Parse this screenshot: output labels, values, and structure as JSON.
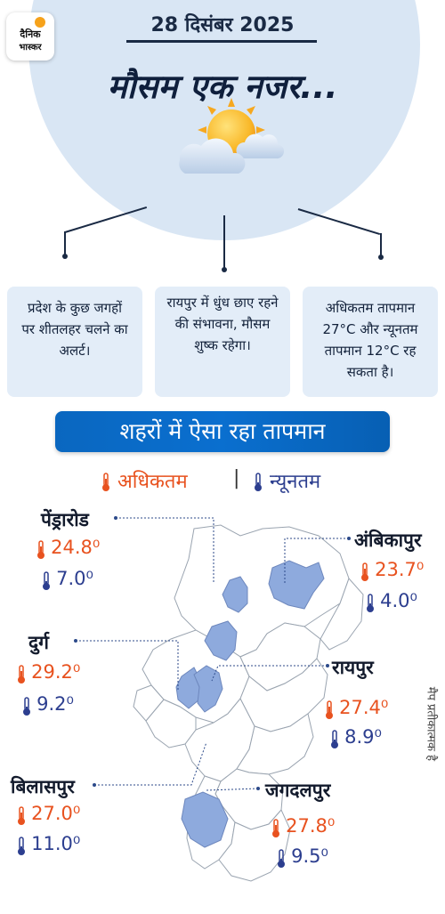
{
  "logo": {
    "line1": "दैनिक",
    "line2": "भास्कर"
  },
  "date": "28 दिसंबर 2025",
  "headline": "मौसम एक नजर...",
  "info_boxes": [
    "प्रदेश के कुछ जगहों पर शीतलहर चलने का अलर्ट।",
    "रायपुर में धुंध छाए रहने की संभावना, मौसम शुष्क रहेगा।",
    "अधिकतम तापमान 27°C और न्यूनतम तापमान 12°C रह सकता है।"
  ],
  "banner": "शहरों में ऐसा रहा तापमान",
  "legend": {
    "max": "अधिकतम",
    "separator": "|",
    "min": "न्यूनतम"
  },
  "cities": [
    {
      "name": "पेंड्रारोड",
      "max": "24.8⁰",
      "min": "7.0⁰"
    },
    {
      "name": "अंबिकापुर",
      "max": "23.7⁰",
      "min": "4.0⁰"
    },
    {
      "name": "दुर्ग",
      "max": "29.2⁰",
      "min": "9.2⁰"
    },
    {
      "name": "रायपुर",
      "max": "27.4⁰",
      "min": "8.9⁰"
    },
    {
      "name": "बिलासपुर",
      "max": "27.0⁰",
      "min": "11.0⁰"
    },
    {
      "name": "जगदलपुर",
      "max": "27.8⁰",
      "min": "9.5⁰"
    }
  ],
  "map_note": "मैप प्रतीकात्मक है",
  "colors": {
    "max": "#e8521f",
    "min": "#2c3e8f",
    "banner": "#0a67c0",
    "box": "#e3edf8",
    "highlight": "#8eaadd"
  }
}
